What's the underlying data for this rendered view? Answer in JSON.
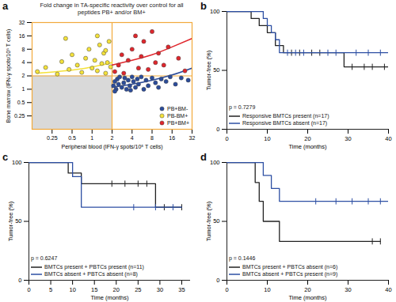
{
  "chart_data": [
    {
      "panel": "a",
      "type": "scatter",
      "title": "Fold change in TA-specific reactivity over control for all peptides PB+ and/or BM+",
      "x_label": "Peripheral blood (IFN-γ spots/10⁵ T cells)",
      "y_label": "Bone marrow (IFN-γ spots/10⁵ T cells)",
      "log": true,
      "legend": "lower right",
      "threshold": 2,
      "xlim": [
        0.125,
        32
      ],
      "ylim": [
        0.125,
        32
      ],
      "xticks": [
        0.25,
        0.5,
        1,
        2,
        4,
        8,
        16,
        32
      ],
      "yticks": [
        0.25,
        0.5,
        1,
        2,
        4,
        8,
        16,
        32
      ],
      "series": [
        {
          "name": "PB+BM-",
          "color": "#2b4c9b",
          "marker": "circle",
          "x": [
            2.1,
            2.2,
            2.3,
            2.4,
            2.5,
            2.6,
            2.8,
            3,
            3.1,
            3.3,
            3.5,
            3.7,
            4,
            4.2,
            4.5,
            4.8,
            5,
            5.5,
            6,
            6.5,
            7,
            8,
            9,
            10,
            11,
            13,
            15,
            18,
            22,
            28,
            2.2,
            3.8
          ],
          "values": [
            1.2,
            1.5,
            1.0,
            1.7,
            1.3,
            1.9,
            1.1,
            1.4,
            1.8,
            1.0,
            1.6,
            1.2,
            1.9,
            1.5,
            1.1,
            1.7,
            1.3,
            1.9,
            1.0,
            1.6,
            1.2,
            1.8,
            1.4,
            1.1,
            1.7,
            1.5,
            1.9,
            1.3,
            1.8,
            1.6,
            0.9,
            0.95
          ],
          "fit": {
            "x": [
              2,
              4,
              8,
              16,
              32
            ],
            "values": [
              1.1,
              1.3,
              1.6,
              2.1,
              3
            ]
          }
        },
        {
          "name": "PB-BM+",
          "color": "#f4e23a",
          "marker": "circle",
          "x": [
            0.15,
            0.2,
            0.3,
            0.35,
            0.45,
            0.5,
            0.6,
            0.7,
            0.8,
            0.9,
            1,
            1.1,
            1.2,
            1.3,
            1.4,
            1.5,
            1.6,
            1.7,
            1.8,
            1.9,
            1.2,
            0.4,
            1.6
          ],
          "values": [
            2.5,
            3.1,
            2.2,
            4.2,
            2.8,
            6,
            3.5,
            2.4,
            5,
            8,
            3,
            4.5,
            2.6,
            10,
            3.8,
            6.5,
            2.3,
            4,
            12,
            3.2,
            16,
            14,
            7.5
          ],
          "fit": {
            "x": [
              0.15,
              0.3,
              0.6,
              1,
              1.5,
              2
            ],
            "values": [
              2.3,
              2.5,
              2.8,
              3.2,
              3.6,
              4
            ]
          }
        },
        {
          "name": "PB+BM+",
          "color": "#e0262c",
          "marker": "circle",
          "x": [
            2.2,
            2.5,
            2.8,
            3,
            3.5,
            4,
            4.5,
            5,
            5.5,
            6,
            7,
            8,
            9,
            10,
            12,
            14,
            20,
            25
          ],
          "values": [
            2.5,
            3.5,
            6,
            2.3,
            4.5,
            8,
            16,
            3,
            5.5,
            12,
            2.8,
            20,
            4,
            6.5,
            3.5,
            9,
            5,
            2.6
          ],
          "fit": {
            "x": [
              2,
              4,
              8,
              16,
              32
            ],
            "values": [
              3.5,
              4.5,
              6,
              9,
              14
            ]
          }
        }
      ]
    },
    {
      "panel": "b",
      "type": "line",
      "x_label": "Time (months)",
      "y_label": "Tumor-free (%)",
      "legend": "lower left",
      "annotations": [
        "p = 0.7279"
      ],
      "xlim": [
        0,
        40
      ],
      "ylim": [
        0,
        100
      ],
      "xticks": [
        0,
        10,
        20,
        30,
        40
      ],
      "yticks": [
        0,
        50,
        100
      ],
      "series": [
        {
          "name": "Responsive BMTCs present (n=17)",
          "color": "#222222",
          "line_style": "step",
          "marker": "vline",
          "x": [
            0,
            6,
            8,
            10,
            12,
            14,
            29,
            40
          ],
          "values": [
            100,
            94,
            88,
            82,
            71,
            65,
            53,
            53
          ],
          "censored": {
            "x": [
              16,
              18,
              21,
              23,
              31,
              34,
              36,
              39
            ],
            "values": [
              65,
              65,
              65,
              65,
              53,
              53,
              53,
              53
            ]
          }
        },
        {
          "name": "Responsive BMTCs absent (n=17)",
          "color": "#2d4fa3",
          "line_style": "step",
          "marker": "vline",
          "x": [
            0,
            9,
            10,
            11,
            12,
            13,
            40
          ],
          "values": [
            100,
            94,
            88,
            82,
            76,
            65,
            65
          ],
          "censored": {
            "x": [
              15,
              17,
              19,
              25,
              27,
              32,
              35,
              38
            ],
            "values": [
              65,
              65,
              65,
              65,
              65,
              65,
              65,
              65
            ]
          }
        }
      ]
    },
    {
      "panel": "c",
      "type": "line",
      "x_label": "Time (months)",
      "y_label": "Tumor-free (%)",
      "legend": "lower left",
      "annotations": [
        "p = 0.6247"
      ],
      "xlim": [
        0,
        37
      ],
      "ylim": [
        0,
        100
      ],
      "xticks": [
        0,
        5,
        10,
        15,
        20,
        25,
        30,
        35
      ],
      "yticks": [
        0,
        50,
        100
      ],
      "series": [
        {
          "name": "BMTCs present + PBTCs present (n=11)",
          "color": "#222222",
          "line_style": "step",
          "marker": "vline",
          "x": [
            0,
            9,
            12,
            29,
            35
          ],
          "values": [
            100,
            91,
            82,
            62,
            62
          ],
          "censored": {
            "x": [
              19,
              22,
              25,
              27,
              31,
              35
            ],
            "values": [
              82,
              82,
              82,
              82,
              62,
              62
            ]
          }
        },
        {
          "name": "BMTCs absent + PBTCs absent (n=8)",
          "color": "#2d4fa3",
          "line_style": "step",
          "marker": "vline",
          "x": [
            0,
            10,
            12,
            35
          ],
          "values": [
            100,
            88,
            62,
            62
          ],
          "censored": {
            "x": [
              24,
              29,
              33
            ],
            "values": [
              62,
              62,
              62
            ]
          }
        }
      ]
    },
    {
      "panel": "d",
      "type": "line",
      "x_label": "Time (months)",
      "y_label": "Tumor-free (%)",
      "legend": "lower left",
      "annotations": [
        "p = 0.1446"
      ],
      "xlim": [
        0,
        40
      ],
      "ylim": [
        0,
        100
      ],
      "xticks": [
        0,
        10,
        20,
        30,
        40
      ],
      "yticks": [
        0,
        50,
        100
      ],
      "series": [
        {
          "name": "BMTCs present + PBTCs absent (n=6)",
          "color": "#222222",
          "line_style": "step",
          "marker": "vline",
          "x": [
            0,
            7,
            8,
            9,
            13,
            38
          ],
          "values": [
            100,
            83,
            67,
            50,
            33,
            33
          ],
          "censored": {
            "x": [
              36,
              38
            ],
            "values": [
              33,
              33
            ]
          }
        },
        {
          "name": "BMTCs absent + PBTCs present (n=9)",
          "color": "#2d4fa3",
          "line_style": "step",
          "marker": "vline",
          "x": [
            0,
            9,
            11,
            13,
            40
          ],
          "values": [
            100,
            89,
            78,
            67,
            67
          ],
          "censored": {
            "x": [
              22,
              27,
              31,
              35,
              38,
              40
            ],
            "values": [
              67,
              67,
              67,
              67,
              67,
              67
            ]
          }
        }
      ]
    }
  ]
}
